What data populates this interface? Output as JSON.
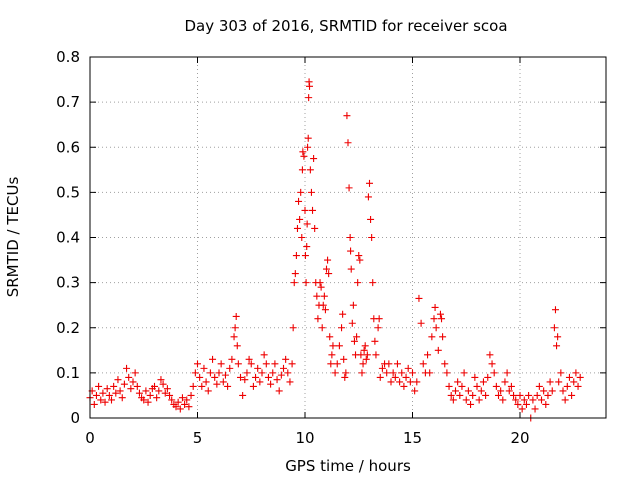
{
  "chart_data": {
    "type": "scatter",
    "title": "Day 303 of 2016, SRMTID for receiver scoa",
    "xlabel": "GPS time / hours",
    "ylabel": "SRMTID / TECUs",
    "xlim": [
      0,
      24
    ],
    "ylim": [
      0,
      0.8
    ],
    "x_ticks": [
      0,
      5,
      10,
      15,
      20
    ],
    "x_tick_labels": [
      "0",
      "5",
      "10",
      "15",
      "20"
    ],
    "y_ticks": [
      0,
      0.1,
      0.2,
      0.3,
      0.4,
      0.5,
      0.6,
      0.7,
      0.8
    ],
    "y_tick_labels": [
      "0",
      "0.1",
      "0.2",
      "0.3",
      "0.4",
      "0.5",
      "0.6",
      "0.7",
      "0.8"
    ],
    "grid": true,
    "marker": "plus",
    "color": "#ee0000",
    "series": [
      {
        "name": "SRMTID",
        "points": [
          [
            0.0,
            0.045
          ],
          [
            0.1,
            0.06
          ],
          [
            0.2,
            0.03
          ],
          [
            0.3,
            0.05
          ],
          [
            0.4,
            0.07
          ],
          [
            0.5,
            0.04
          ],
          [
            0.6,
            0.055
          ],
          [
            0.7,
            0.035
          ],
          [
            0.8,
            0.065
          ],
          [
            0.9,
            0.05
          ],
          [
            1.0,
            0.04
          ],
          [
            1.1,
            0.07
          ],
          [
            1.2,
            0.055
          ],
          [
            1.3,
            0.085
          ],
          [
            1.4,
            0.06
          ],
          [
            1.5,
            0.045
          ],
          [
            1.6,
            0.075
          ],
          [
            1.7,
            0.11
          ],
          [
            1.8,
            0.09
          ],
          [
            1.9,
            0.065
          ],
          [
            2.0,
            0.08
          ],
          [
            2.1,
            0.1
          ],
          [
            2.2,
            0.07
          ],
          [
            2.3,
            0.055
          ],
          [
            2.4,
            0.045
          ],
          [
            2.5,
            0.04
          ],
          [
            2.6,
            0.06
          ],
          [
            2.7,
            0.035
          ],
          [
            2.8,
            0.05
          ],
          [
            2.9,
            0.065
          ],
          [
            3.0,
            0.07
          ],
          [
            3.1,
            0.045
          ],
          [
            3.2,
            0.06
          ],
          [
            3.3,
            0.085
          ],
          [
            3.4,
            0.075
          ],
          [
            3.5,
            0.055
          ],
          [
            3.6,
            0.065
          ],
          [
            3.7,
            0.05
          ],
          [
            3.8,
            0.04
          ],
          [
            3.9,
            0.03
          ],
          [
            4.0,
            0.025
          ],
          [
            4.1,
            0.035
          ],
          [
            4.2,
            0.02
          ],
          [
            4.3,
            0.045
          ],
          [
            4.4,
            0.03
          ],
          [
            4.5,
            0.04
          ],
          [
            4.6,
            0.025
          ],
          [
            4.7,
            0.05
          ],
          [
            4.8,
            0.07
          ],
          [
            4.9,
            0.1
          ],
          [
            5.0,
            0.12
          ],
          [
            5.1,
            0.09
          ],
          [
            5.2,
            0.07
          ],
          [
            5.3,
            0.11
          ],
          [
            5.4,
            0.08
          ],
          [
            5.5,
            0.06
          ],
          [
            5.6,
            0.1
          ],
          [
            5.7,
            0.13
          ],
          [
            5.8,
            0.09
          ],
          [
            5.9,
            0.075
          ],
          [
            6.0,
            0.1
          ],
          [
            6.1,
            0.12
          ],
          [
            6.2,
            0.08
          ],
          [
            6.3,
            0.095
          ],
          [
            6.4,
            0.07
          ],
          [
            6.5,
            0.11
          ],
          [
            6.6,
            0.13
          ],
          [
            6.7,
            0.18
          ],
          [
            6.75,
            0.2
          ],
          [
            6.8,
            0.225
          ],
          [
            6.85,
            0.16
          ],
          [
            6.9,
            0.12
          ],
          [
            7.0,
            0.09
          ],
          [
            7.1,
            0.05
          ],
          [
            7.2,
            0.085
          ],
          [
            7.3,
            0.1
          ],
          [
            7.4,
            0.13
          ],
          [
            7.5,
            0.12
          ],
          [
            7.6,
            0.07
          ],
          [
            7.7,
            0.09
          ],
          [
            7.8,
            0.11
          ],
          [
            7.9,
            0.08
          ],
          [
            8.0,
            0.1
          ],
          [
            8.1,
            0.14
          ],
          [
            8.2,
            0.12
          ],
          [
            8.3,
            0.09
          ],
          [
            8.4,
            0.075
          ],
          [
            8.5,
            0.1
          ],
          [
            8.6,
            0.12
          ],
          [
            8.7,
            0.085
          ],
          [
            8.8,
            0.06
          ],
          [
            8.9,
            0.095
          ],
          [
            9.0,
            0.11
          ],
          [
            9.1,
            0.13
          ],
          [
            9.2,
            0.1
          ],
          [
            9.3,
            0.08
          ],
          [
            9.4,
            0.12
          ],
          [
            9.45,
            0.2
          ],
          [
            9.5,
            0.3
          ],
          [
            9.55,
            0.32
          ],
          [
            9.6,
            0.36
          ],
          [
            9.65,
            0.42
          ],
          [
            9.7,
            0.48
          ],
          [
            9.75,
            0.44
          ],
          [
            9.8,
            0.5
          ],
          [
            9.85,
            0.4
          ],
          [
            9.88,
            0.55
          ],
          [
            9.9,
            0.59
          ],
          [
            9.95,
            0.58
          ],
          [
            10.0,
            0.46
          ],
          [
            10.02,
            0.36
          ],
          [
            10.05,
            0.3
          ],
          [
            10.08,
            0.38
          ],
          [
            10.1,
            0.43
          ],
          [
            10.12,
            0.6
          ],
          [
            10.15,
            0.62
          ],
          [
            10.17,
            0.71
          ],
          [
            10.19,
            0.745
          ],
          [
            10.21,
            0.735
          ],
          [
            10.25,
            0.55
          ],
          [
            10.3,
            0.5
          ],
          [
            10.35,
            0.46
          ],
          [
            10.4,
            0.575
          ],
          [
            10.45,
            0.42
          ],
          [
            10.5,
            0.3
          ],
          [
            10.55,
            0.27
          ],
          [
            10.6,
            0.22
          ],
          [
            10.65,
            0.25
          ],
          [
            10.7,
            0.3
          ],
          [
            10.75,
            0.29
          ],
          [
            10.8,
            0.2
          ],
          [
            10.85,
            0.25
          ],
          [
            10.9,
            0.27
          ],
          [
            10.95,
            0.24
          ],
          [
            11.0,
            0.33
          ],
          [
            11.05,
            0.35
          ],
          [
            11.1,
            0.32
          ],
          [
            11.15,
            0.18
          ],
          [
            11.2,
            0.12
          ],
          [
            11.25,
            0.14
          ],
          [
            11.3,
            0.16
          ],
          [
            11.4,
            0.1
          ],
          [
            11.5,
            0.12
          ],
          [
            11.6,
            0.16
          ],
          [
            11.7,
            0.2
          ],
          [
            11.75,
            0.23
          ],
          [
            11.8,
            0.13
          ],
          [
            11.85,
            0.09
          ],
          [
            11.9,
            0.1
          ],
          [
            11.95,
            0.67
          ],
          [
            12.0,
            0.61
          ],
          [
            12.05,
            0.51
          ],
          [
            12.1,
            0.4
          ],
          [
            12.12,
            0.37
          ],
          [
            12.15,
            0.33
          ],
          [
            12.2,
            0.21
          ],
          [
            12.25,
            0.25
          ],
          [
            12.3,
            0.17
          ],
          [
            12.35,
            0.14
          ],
          [
            12.4,
            0.18
          ],
          [
            12.45,
            0.3
          ],
          [
            12.5,
            0.36
          ],
          [
            12.55,
            0.35
          ],
          [
            12.6,
            0.14
          ],
          [
            12.65,
            0.1
          ],
          [
            12.7,
            0.12
          ],
          [
            12.75,
            0.15
          ],
          [
            12.8,
            0.16
          ],
          [
            12.85,
            0.13
          ],
          [
            12.9,
            0.14
          ],
          [
            12.95,
            0.49
          ],
          [
            13.0,
            0.52
          ],
          [
            13.05,
            0.44
          ],
          [
            13.1,
            0.4
          ],
          [
            13.15,
            0.3
          ],
          [
            13.2,
            0.22
          ],
          [
            13.25,
            0.17
          ],
          [
            13.3,
            0.14
          ],
          [
            13.4,
            0.2
          ],
          [
            13.45,
            0.22
          ],
          [
            13.5,
            0.09
          ],
          [
            13.6,
            0.11
          ],
          [
            13.7,
            0.12
          ],
          [
            13.8,
            0.1
          ],
          [
            13.9,
            0.12
          ],
          [
            14.0,
            0.08
          ],
          [
            14.1,
            0.1
          ],
          [
            14.2,
            0.09
          ],
          [
            14.3,
            0.12
          ],
          [
            14.4,
            0.08
          ],
          [
            14.5,
            0.1
          ],
          [
            14.6,
            0.07
          ],
          [
            14.7,
            0.09
          ],
          [
            14.8,
            0.11
          ],
          [
            14.9,
            0.08
          ],
          [
            15.0,
            0.1
          ],
          [
            15.1,
            0.06
          ],
          [
            15.2,
            0.08
          ],
          [
            15.3,
            0.265
          ],
          [
            15.4,
            0.21
          ],
          [
            15.5,
            0.12
          ],
          [
            15.6,
            0.1
          ],
          [
            15.7,
            0.14
          ],
          [
            15.8,
            0.1
          ],
          [
            15.9,
            0.18
          ],
          [
            16.0,
            0.22
          ],
          [
            16.05,
            0.245
          ],
          [
            16.1,
            0.2
          ],
          [
            16.2,
            0.15
          ],
          [
            16.3,
            0.23
          ],
          [
            16.35,
            0.22
          ],
          [
            16.4,
            0.18
          ],
          [
            16.5,
            0.12
          ],
          [
            16.6,
            0.1
          ],
          [
            16.7,
            0.07
          ],
          [
            16.8,
            0.05
          ],
          [
            16.9,
            0.04
          ],
          [
            17.0,
            0.06
          ],
          [
            17.1,
            0.08
          ],
          [
            17.2,
            0.05
          ],
          [
            17.3,
            0.07
          ],
          [
            17.4,
            0.1
          ],
          [
            17.5,
            0.04
          ],
          [
            17.6,
            0.06
          ],
          [
            17.7,
            0.03
          ],
          [
            17.8,
            0.05
          ],
          [
            17.9,
            0.09
          ],
          [
            18.0,
            0.07
          ],
          [
            18.1,
            0.04
          ],
          [
            18.2,
            0.06
          ],
          [
            18.3,
            0.08
          ],
          [
            18.4,
            0.05
          ],
          [
            18.5,
            0.09
          ],
          [
            18.6,
            0.14
          ],
          [
            18.7,
            0.12
          ],
          [
            18.8,
            0.1
          ],
          [
            18.9,
            0.07
          ],
          [
            19.0,
            0.05
          ],
          [
            19.1,
            0.06
          ],
          [
            19.2,
            0.04
          ],
          [
            19.3,
            0.08
          ],
          [
            19.4,
            0.1
          ],
          [
            19.5,
            0.06
          ],
          [
            19.6,
            0.07
          ],
          [
            19.7,
            0.05
          ],
          [
            19.8,
            0.04
          ],
          [
            19.9,
            0.03
          ],
          [
            20.0,
            0.05
          ],
          [
            20.1,
            0.02
          ],
          [
            20.2,
            0.04
          ],
          [
            20.3,
            0.03
          ],
          [
            20.4,
            0.05
          ],
          [
            20.5,
            0.0
          ],
          [
            20.6,
            0.04
          ],
          [
            20.7,
            0.02
          ],
          [
            20.8,
            0.05
          ],
          [
            20.9,
            0.07
          ],
          [
            21.0,
            0.04
          ],
          [
            21.1,
            0.06
          ],
          [
            21.2,
            0.03
          ],
          [
            21.3,
            0.05
          ],
          [
            21.4,
            0.08
          ],
          [
            21.5,
            0.06
          ],
          [
            21.6,
            0.2
          ],
          [
            21.65,
            0.24
          ],
          [
            21.7,
            0.16
          ],
          [
            21.75,
            0.18
          ],
          [
            21.8,
            0.08
          ],
          [
            21.9,
            0.1
          ],
          [
            22.0,
            0.06
          ],
          [
            22.1,
            0.04
          ],
          [
            22.2,
            0.07
          ],
          [
            22.3,
            0.09
          ],
          [
            22.4,
            0.05
          ],
          [
            22.5,
            0.08
          ],
          [
            22.6,
            0.1
          ],
          [
            22.7,
            0.07
          ],
          [
            22.8,
            0.09
          ]
        ]
      }
    ]
  }
}
